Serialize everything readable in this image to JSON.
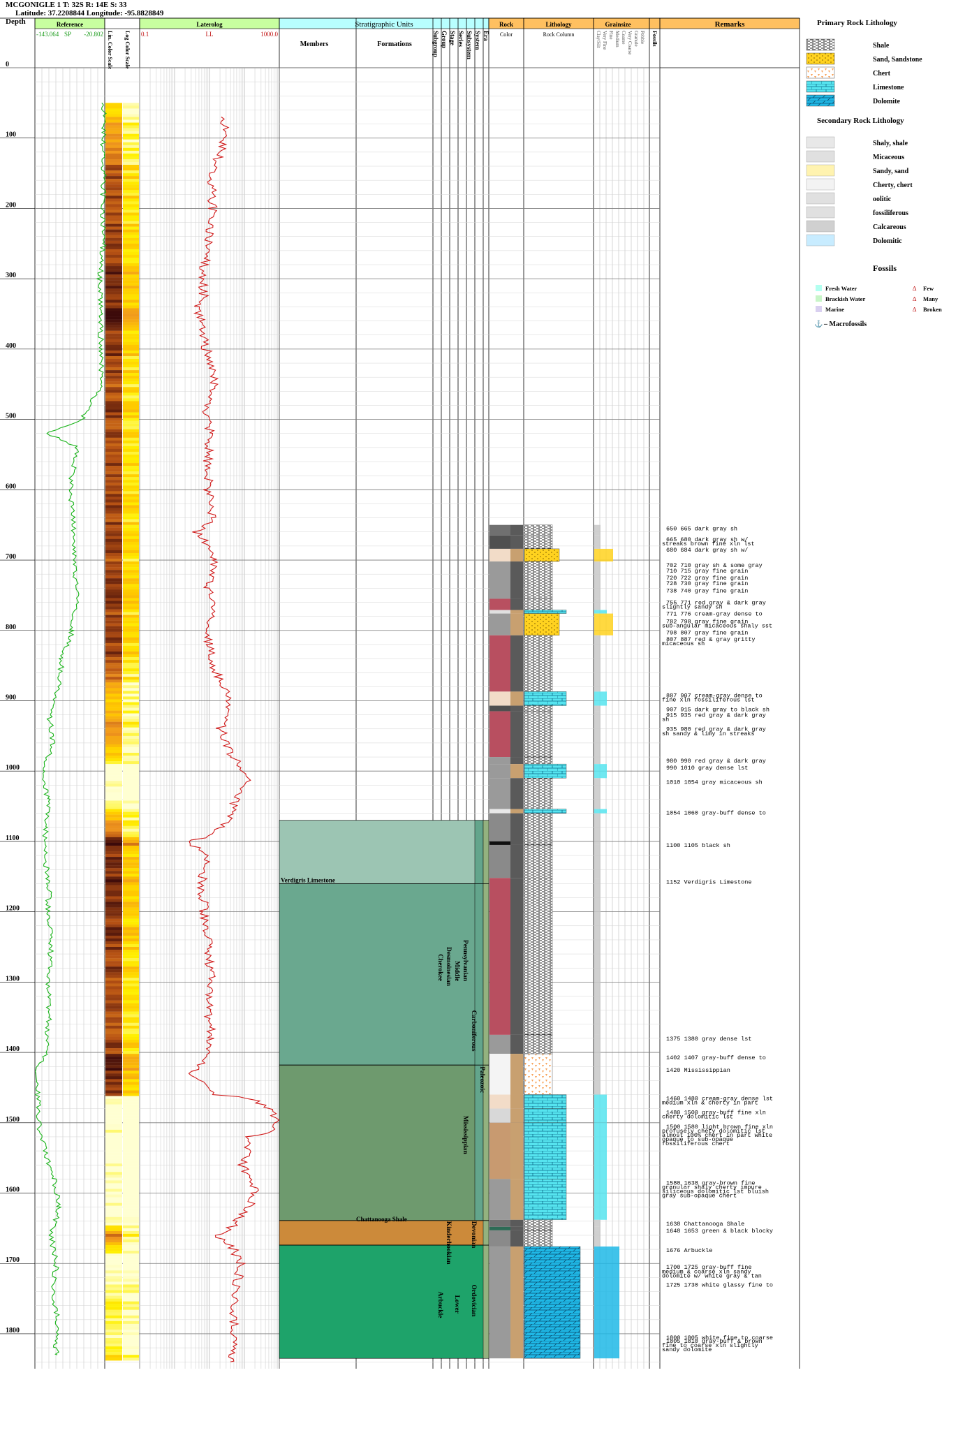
{
  "header": {
    "well": "MCGONIGLE 1 T: 32S R: 14E S: 33",
    "location": "Latitude: 37.2208844 Longitude: -95.8828849"
  },
  "columns": {
    "depth": "Depth",
    "reference": "Reference",
    "ref_min": "-143.064",
    "ref_curve": "SP",
    "ref_max": "-20.802",
    "color_col1": "Lin. Color Scale",
    "color_col2": "Log Color Scale",
    "laterolog": "Laterolog",
    "lat_min": "0.1",
    "lat_curve": "LL",
    "lat_max": "1000.0",
    "strat": "Stratigraphic Units",
    "members": "Members",
    "formations": "Formations",
    "strat_ranks": [
      "Subgroup",
      "Group",
      "Stage",
      "Series",
      "Subsystem",
      "System",
      "Era"
    ],
    "rock": "Rock",
    "rock_sub": "Color",
    "lithology": "Lithology",
    "litho_sub": "Rock Column",
    "grainsize": "Grainsize",
    "grain_ranks": [
      "Clay/Silt",
      "Very Fine",
      "Fine",
      "Medium",
      "Coarse",
      "Very Coarse",
      "Granule",
      "Pebble"
    ],
    "fossils": "Fossils",
    "remarks": "Remarks"
  },
  "depth_ticks": [
    "0",
    "100",
    "200",
    "300",
    "400",
    "500",
    "600",
    "700",
    "800",
    "900",
    "1000",
    "1100",
    "1200",
    "1300",
    "1400",
    "1500",
    "1600",
    "1700",
    "1800"
  ],
  "strat_units": {
    "members": [
      "Verdigris Limestone"
    ],
    "formations": [
      "Chattanooga Shale"
    ],
    "subgroups": [
      "Cherokee"
    ],
    "groups": [
      "Kinderhookian",
      "Arbuckle"
    ],
    "stages": [
      "Desmoinesian"
    ],
    "series": [
      "Middle",
      "Lower"
    ],
    "subsystems": [
      "Pennsylvanian",
      "Mississippian"
    ],
    "systems": [
      "Carboniferous",
      "Devonian",
      "Ordovician"
    ],
    "eras": [
      "Paleozoic"
    ]
  },
  "remarks": [
    "650 665 dark gray sh",
    "665 680 dark gray sh w/",
    "streaks brown fine xln lst",
    "680 684 dark gray sh w/",
    "702 710 gray sh & some gray",
    "710 715 gray fine grain",
    "720 722 gray fine grain",
    "728 730 gray fine grain",
    "738 740 gray fine grain",
    "755 771 red gray & dark gray",
    "slightly sandy sh",
    "771 776 cream-gray dense to",
    "782 798 gray fine grain",
    "sub-angular micaceous shaly sst",
    "798 807 gray fine grain",
    "807 887 red & gray gritty",
    "micaceous sh",
    "887 907 cream-gray dense to",
    "fine xln fossiliferous lst",
    "907 915 dark gray to black sh",
    "915 935 red gray & dark gray",
    "sh",
    "935 980 red gray & dark gray",
    "sh sandy & limy in streaks",
    "980 990 red gray & dark gray",
    "990 1010 gray dense lst",
    "1010 1054 gray micaceous sh",
    "1054 1060 gray-buff dense to",
    "1100 1105 black sh",
    "1152 Verdigris Limestone",
    "1375 1380 gray dense lst",
    "1402 1407 gray-buff dense to",
    "1420 Mississippian",
    "1460 1480 cream-gray dense lst",
    "medium xln & cherty in part",
    "1480 1500 gray-buff fine xln",
    "cherty dolomitic lst",
    "1500 1580 light brown fine xln",
    "profusely chety dolomitic lst",
    "almost 100% chert in part white",
    "opaque to sub-opaque",
    "fossiliferous chert",
    "1580 1638 gray-brown fine",
    "granular shaly cherty impure",
    "siliceous dolomitic lst bluish",
    "gray sub-opaque chert",
    "1638 Chattanooga Shale",
    "1648 1653 green & black blocky",
    "1676 Arbuckle",
    "1700 1725 gray-buff fine",
    "medium & coarse xln sandy",
    "dolomite w/ white gray & tan",
    "1725 1730 white glassy fine to",
    "1800 1805 white fine to coarse",
    "1805 1810 gray-buff & brown",
    "fine to coarse xln slightly",
    "sandy dolomite"
  ],
  "legend": {
    "primary_title": "Primary Rock Lithology",
    "primary": [
      "Shale",
      "Sand, Sandstone",
      "Chert",
      "Limestone",
      "Dolomite"
    ],
    "secondary_title": "Secondary Rock Lithology",
    "secondary": [
      "Shaly, shale",
      "Micaceous",
      "Sandy, sand",
      "Cherty, chert",
      "oolitic",
      "fossiliferous",
      "Calcareous",
      "Dolomitic"
    ],
    "fossils_title": "Fossils",
    "water": [
      "Fresh Water",
      "Brackish Water",
      "Marine"
    ],
    "abundance": [
      "Few",
      "Many",
      "Broken"
    ],
    "macro": "– Macrofossils",
    "colors": {
      "shale": "#9a9a9a",
      "sand": "#ffd21f",
      "chert": "#f7a35c",
      "limestone": "#56e4ef",
      "dolomite": "#1fb8e6",
      "fresh": "#b3fff0",
      "brackish": "#c8f5c8",
      "marine": "#d9d0f0"
    }
  },
  "chart_data": {
    "type": "line",
    "depth_range": [
      0,
      1850
    ],
    "series": [
      {
        "name": "SP",
        "scale": "linear",
        "range": [
          -143.064,
          -20.802
        ],
        "points": [
          [
            50,
            -21
          ],
          [
            100,
            -24
          ],
          [
            150,
            -22
          ],
          [
            200,
            -25
          ],
          [
            250,
            -23
          ],
          [
            300,
            -30
          ],
          [
            350,
            -27
          ],
          [
            400,
            -28
          ],
          [
            450,
            -26
          ],
          [
            500,
            -60
          ],
          [
            520,
            -120
          ],
          [
            540,
            -68
          ],
          [
            560,
            -74
          ],
          [
            600,
            -82
          ],
          [
            640,
            -76
          ],
          [
            700,
            -74
          ],
          [
            760,
            -70
          ],
          [
            800,
            -78
          ],
          [
            840,
            -96
          ],
          [
            880,
            -100
          ],
          [
            920,
            -118
          ],
          [
            960,
            -112
          ],
          [
            1000,
            -130
          ],
          [
            1040,
            -120
          ],
          [
            1080,
            -124
          ],
          [
            1120,
            -126
          ],
          [
            1160,
            -118
          ],
          [
            1200,
            -120
          ],
          [
            1250,
            -115
          ],
          [
            1300,
            -120
          ],
          [
            1350,
            -118
          ],
          [
            1400,
            -124
          ],
          [
            1430,
            -142
          ],
          [
            1460,
            -138
          ],
          [
            1500,
            -137
          ],
          [
            1540,
            -125
          ],
          [
            1580,
            -110
          ],
          [
            1620,
            -100
          ],
          [
            1660,
            -115
          ],
          [
            1700,
            -105
          ],
          [
            1740,
            -112
          ],
          [
            1780,
            -102
          ],
          [
            1820,
            -108
          ],
          [
            1830,
            -104
          ]
        ]
      },
      {
        "name": "LL",
        "scale": "log",
        "range": [
          0.1,
          1000.0
        ],
        "points": [
          [
            70,
            30
          ],
          [
            100,
            25
          ],
          [
            150,
            12
          ],
          [
            200,
            12
          ],
          [
            250,
            9
          ],
          [
            300,
            6
          ],
          [
            330,
            7
          ],
          [
            340,
            4
          ],
          [
            360,
            6
          ],
          [
            400,
            8
          ],
          [
            450,
            14
          ],
          [
            480,
            8
          ],
          [
            520,
            11
          ],
          [
            560,
            9
          ],
          [
            600,
            9
          ],
          [
            640,
            12
          ],
          [
            660,
            4
          ],
          [
            700,
            14
          ],
          [
            740,
            9
          ],
          [
            780,
            12
          ],
          [
            820,
            9
          ],
          [
            860,
            15
          ],
          [
            900,
            40
          ],
          [
            940,
            20
          ],
          [
            980,
            40
          ],
          [
            1010,
            120
          ],
          [
            1040,
            60
          ],
          [
            1080,
            20
          ],
          [
            1100,
            2
          ],
          [
            1120,
            8
          ],
          [
            1160,
            6
          ],
          [
            1200,
            7
          ],
          [
            1250,
            9
          ],
          [
            1300,
            11
          ],
          [
            1340,
            9
          ],
          [
            1380,
            12
          ],
          [
            1400,
            8
          ],
          [
            1430,
            3
          ],
          [
            1460,
            12
          ],
          [
            1500,
            900
          ],
          [
            1520,
            150
          ],
          [
            1560,
            90
          ],
          [
            1600,
            200
          ],
          [
            1640,
            60
          ],
          [
            1660,
            15
          ],
          [
            1700,
            80
          ],
          [
            1750,
            50
          ],
          [
            1800,
            55
          ],
          [
            1840,
            40
          ]
        ]
      }
    ],
    "lithology_intervals": [
      {
        "top": 650,
        "base": 665,
        "rock": "shale",
        "color": "#707070"
      },
      {
        "top": 665,
        "base": 684,
        "rock": "shale",
        "color": "#505050"
      },
      {
        "top": 684,
        "base": 702,
        "rock": "sand",
        "color": "#f2dcc8"
      },
      {
        "top": 702,
        "base": 755,
        "rock": "shale",
        "color": "#9a9a9a"
      },
      {
        "top": 755,
        "base": 771,
        "rock": "shale",
        "color": "#b85060"
      },
      {
        "top": 771,
        "base": 776,
        "rock": "limestone",
        "color": "#e0e0e0"
      },
      {
        "top": 776,
        "base": 807,
        "rock": "sand",
        "color": "#9a9a9a"
      },
      {
        "top": 807,
        "base": 887,
        "rock": "shale",
        "color": "#b84f60"
      },
      {
        "top": 887,
        "base": 907,
        "rock": "limestone",
        "color": "#f2dcc8"
      },
      {
        "top": 907,
        "base": 915,
        "rock": "shale",
        "color": "#505050"
      },
      {
        "top": 915,
        "base": 980,
        "rock": "shale",
        "color": "#b84f60"
      },
      {
        "top": 980,
        "base": 990,
        "rock": "shale",
        "color": "#9a9a9a"
      },
      {
        "top": 990,
        "base": 1010,
        "rock": "limestone",
        "color": "#9a9a9a"
      },
      {
        "top": 1010,
        "base": 1054,
        "rock": "shale",
        "color": "#9a9a9a"
      },
      {
        "top": 1054,
        "base": 1060,
        "rock": "limestone",
        "color": "#e8e8e8"
      },
      {
        "top": 1060,
        "base": 1100,
        "rock": "shale",
        "color": "#8a8a8a"
      },
      {
        "top": 1100,
        "base": 1105,
        "rock": "shale",
        "color": "#101010"
      },
      {
        "top": 1105,
        "base": 1152,
        "rock": "shale",
        "color": "#8a8a8a"
      },
      {
        "top": 1152,
        "base": 1375,
        "rock": "shale",
        "color": "#b84f60"
      },
      {
        "top": 1375,
        "base": 1402,
        "rock": "shale",
        "color": "#9a9a9a"
      },
      {
        "top": 1402,
        "base": 1460,
        "rock": "chert",
        "color": "#f4f4f4"
      },
      {
        "top": 1460,
        "base": 1480,
        "rock": "limestone",
        "color": "#f2dcc8"
      },
      {
        "top": 1480,
        "base": 1500,
        "rock": "limestone",
        "color": "#d8d8d8"
      },
      {
        "top": 1500,
        "base": 1580,
        "rock": "limestone",
        "color": "#c89a70"
      },
      {
        "top": 1580,
        "base": 1638,
        "rock": "limestone",
        "color": "#9a9a9a"
      },
      {
        "top": 1638,
        "base": 1648,
        "rock": "shale",
        "color": "#707070"
      },
      {
        "top": 1648,
        "base": 1653,
        "rock": "shale",
        "color": "#2d6b55"
      },
      {
        "top": 1653,
        "base": 1676,
        "rock": "shale",
        "color": "#8a8a8a"
      },
      {
        "top": 1676,
        "base": 1835,
        "rock": "dolomite",
        "color": "#9a9a9a"
      }
    ]
  }
}
